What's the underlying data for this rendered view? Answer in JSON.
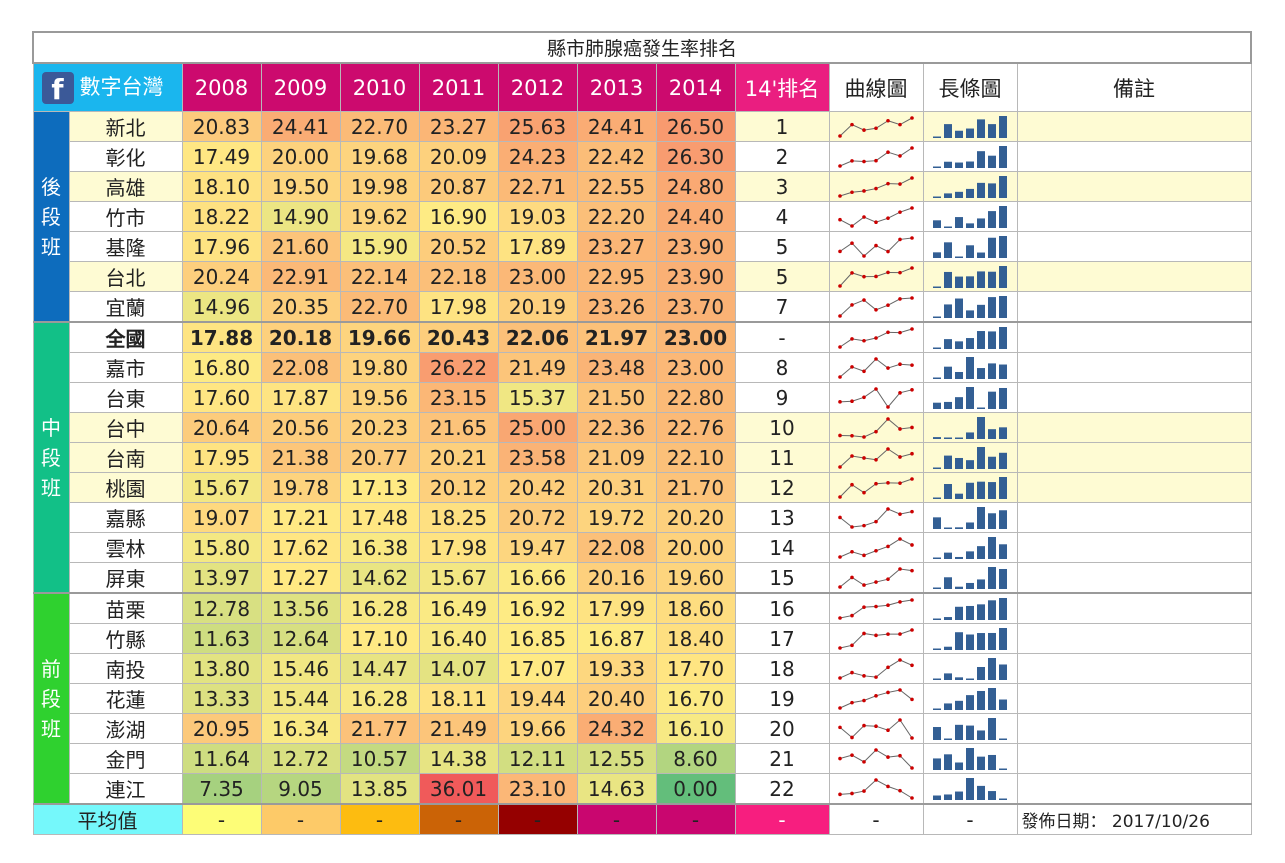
{
  "title": "縣市肺腺癌發生率排名",
  "header": {
    "brand": "數字台灣",
    "fb_logo": "f",
    "years": [
      "2008",
      "2009",
      "2010",
      "2011",
      "2012",
      "2013",
      "2014"
    ],
    "rank": "14'排名",
    "sparkline": "曲線圖",
    "bars": "長條圖",
    "note": "備註"
  },
  "groups": [
    {
      "label": [
        "後",
        "段",
        "班"
      ],
      "color": "#0d6cbd"
    },
    {
      "label": [
        "中",
        "段",
        "班"
      ],
      "color": "#12c087"
    },
    {
      "label": [
        "前",
        "段",
        "班"
      ],
      "color": "#2fd12f"
    }
  ],
  "rows": [
    {
      "city": "新北",
      "values": [
        "20.83",
        "24.41",
        "22.70",
        "23.27",
        "25.63",
        "24.41",
        "26.50"
      ],
      "rank": "1",
      "highlight": true
    },
    {
      "city": "彰化",
      "values": [
        "17.49",
        "20.00",
        "19.68",
        "20.09",
        "24.23",
        "22.42",
        "26.30"
      ],
      "rank": "2",
      "highlight": false
    },
    {
      "city": "高雄",
      "values": [
        "18.10",
        "19.50",
        "19.98",
        "20.87",
        "22.71",
        "22.55",
        "24.80"
      ],
      "rank": "3",
      "highlight": true
    },
    {
      "city": "竹市",
      "values": [
        "18.22",
        "14.90",
        "19.62",
        "16.90",
        "19.03",
        "22.20",
        "24.40"
      ],
      "rank": "4",
      "highlight": false
    },
    {
      "city": "基隆",
      "values": [
        "17.96",
        "21.60",
        "15.90",
        "20.52",
        "17.89",
        "23.27",
        "23.90"
      ],
      "rank": "5",
      "highlight": false
    },
    {
      "city": "台北",
      "values": [
        "20.24",
        "22.91",
        "22.14",
        "22.18",
        "23.00",
        "22.95",
        "23.90"
      ],
      "rank": "5",
      "highlight": true
    },
    {
      "city": "宜蘭",
      "values": [
        "14.96",
        "20.35",
        "22.70",
        "17.98",
        "20.19",
        "23.26",
        "23.70"
      ],
      "rank": "7",
      "highlight": false
    },
    {
      "city": "全國",
      "values": [
        "17.88",
        "20.18",
        "19.66",
        "20.43",
        "22.06",
        "21.97",
        "23.00"
      ],
      "rank": "-",
      "highlight": false,
      "bold": true
    },
    {
      "city": "嘉市",
      "values": [
        "16.80",
        "22.08",
        "19.80",
        "26.22",
        "21.49",
        "23.48",
        "23.00"
      ],
      "rank": "8",
      "highlight": false
    },
    {
      "city": "台東",
      "values": [
        "17.60",
        "17.87",
        "19.56",
        "23.15",
        "15.37",
        "21.50",
        "22.80"
      ],
      "rank": "9",
      "highlight": false
    },
    {
      "city": "台中",
      "values": [
        "20.64",
        "20.56",
        "20.23",
        "21.65",
        "25.00",
        "22.36",
        "22.76"
      ],
      "rank": "10",
      "highlight": true
    },
    {
      "city": "台南",
      "values": [
        "17.95",
        "21.38",
        "20.77",
        "20.21",
        "23.58",
        "21.09",
        "22.10"
      ],
      "rank": "11",
      "highlight": true
    },
    {
      "city": "桃園",
      "values": [
        "15.67",
        "19.78",
        "17.13",
        "20.12",
        "20.42",
        "20.31",
        "21.70"
      ],
      "rank": "12",
      "highlight": true
    },
    {
      "city": "嘉縣",
      "values": [
        "19.07",
        "17.21",
        "17.48",
        "18.25",
        "20.72",
        "19.72",
        "20.20"
      ],
      "rank": "13",
      "highlight": false
    },
    {
      "city": "雲林",
      "values": [
        "15.80",
        "17.62",
        "16.38",
        "17.98",
        "19.47",
        "22.08",
        "20.00"
      ],
      "rank": "14",
      "highlight": false
    },
    {
      "city": "屏東",
      "values": [
        "13.97",
        "17.27",
        "14.62",
        "15.67",
        "16.66",
        "20.16",
        "19.60"
      ],
      "rank": "15",
      "highlight": false
    },
    {
      "city": "苗栗",
      "values": [
        "12.78",
        "13.56",
        "16.28",
        "16.49",
        "16.92",
        "17.99",
        "18.60"
      ],
      "rank": "16",
      "highlight": false
    },
    {
      "city": "竹縣",
      "values": [
        "11.63",
        "12.64",
        "17.10",
        "16.40",
        "16.85",
        "16.87",
        "18.40"
      ],
      "rank": "17",
      "highlight": false
    },
    {
      "city": "南投",
      "values": [
        "13.80",
        "15.46",
        "14.47",
        "14.07",
        "17.07",
        "19.33",
        "17.70"
      ],
      "rank": "18",
      "highlight": false
    },
    {
      "city": "花蓮",
      "values": [
        "13.33",
        "15.44",
        "16.28",
        "18.11",
        "19.44",
        "20.40",
        "16.70"
      ],
      "rank": "19",
      "highlight": false
    },
    {
      "city": "澎湖",
      "values": [
        "20.95",
        "16.34",
        "21.77",
        "21.49",
        "19.66",
        "24.32",
        "16.10"
      ],
      "rank": "20",
      "highlight": false
    },
    {
      "city": "金門",
      "values": [
        "11.64",
        "12.72",
        "10.57",
        "14.38",
        "12.11",
        "12.55",
        "8.60"
      ],
      "rank": "21",
      "highlight": false
    },
    {
      "city": "連江",
      "values": [
        "7.35",
        "9.05",
        "13.85",
        "36.01",
        "23.10",
        "14.63",
        "0.00"
      ],
      "rank": "22",
      "highlight": false
    }
  ],
  "average": {
    "label": "平均值",
    "values": [
      "-",
      "-",
      "-",
      "-",
      "-",
      "-",
      "-"
    ],
    "rank": "-",
    "sparkline": "-",
    "bars": "-",
    "colors": [
      "#fdfd77",
      "#fdca68",
      "#fdbc10",
      "#cb6306",
      "#950000",
      "#c9066f",
      "#c9066f"
    ],
    "rank_color": "#f71e7f"
  },
  "release": "發佈日期： 2017/10/26",
  "colors": {
    "year_header": "#cc0a6e",
    "rank_header": "#ea1e80",
    "brand_header": "#1ab6ee",
    "highlight_row": "#fefbd3",
    "sparkline_line": "#666666",
    "sparkline_point": "#cc0000",
    "bar_fill": "#335f94"
  }
}
